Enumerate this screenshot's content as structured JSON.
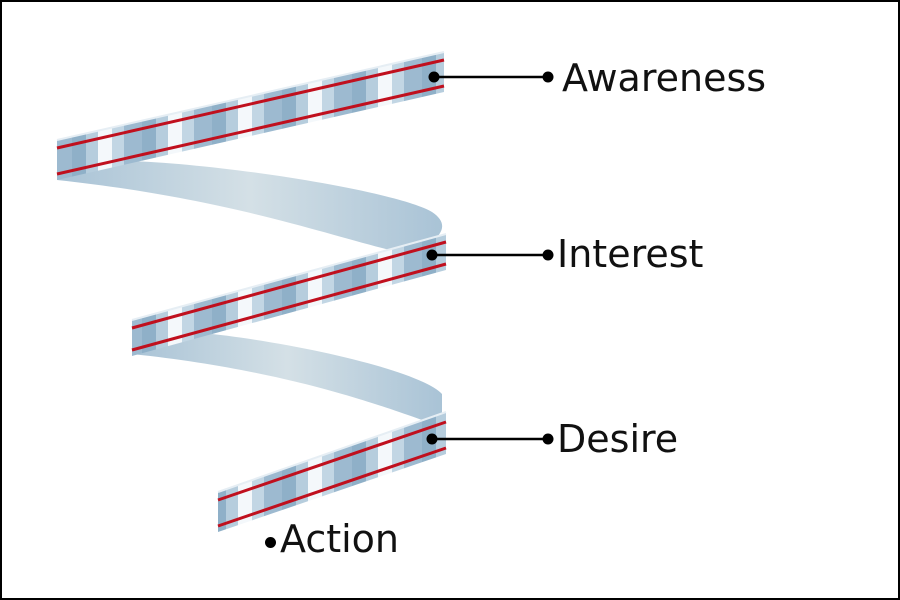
{
  "stages": [
    {
      "label": "Awareness"
    },
    {
      "label": "Interest"
    },
    {
      "label": "Desire"
    },
    {
      "label": "Action"
    }
  ],
  "colors": {
    "border": "#000000",
    "ribbon_front_light": "#f4f8fb",
    "ribbon_front_dark": "#8fb0c8",
    "ribbon_back": "#a9c3d6",
    "ribbon_back_light": "#d4e0e6",
    "stripe": "#c0101e",
    "connector": "#000000",
    "text": "#111111"
  }
}
